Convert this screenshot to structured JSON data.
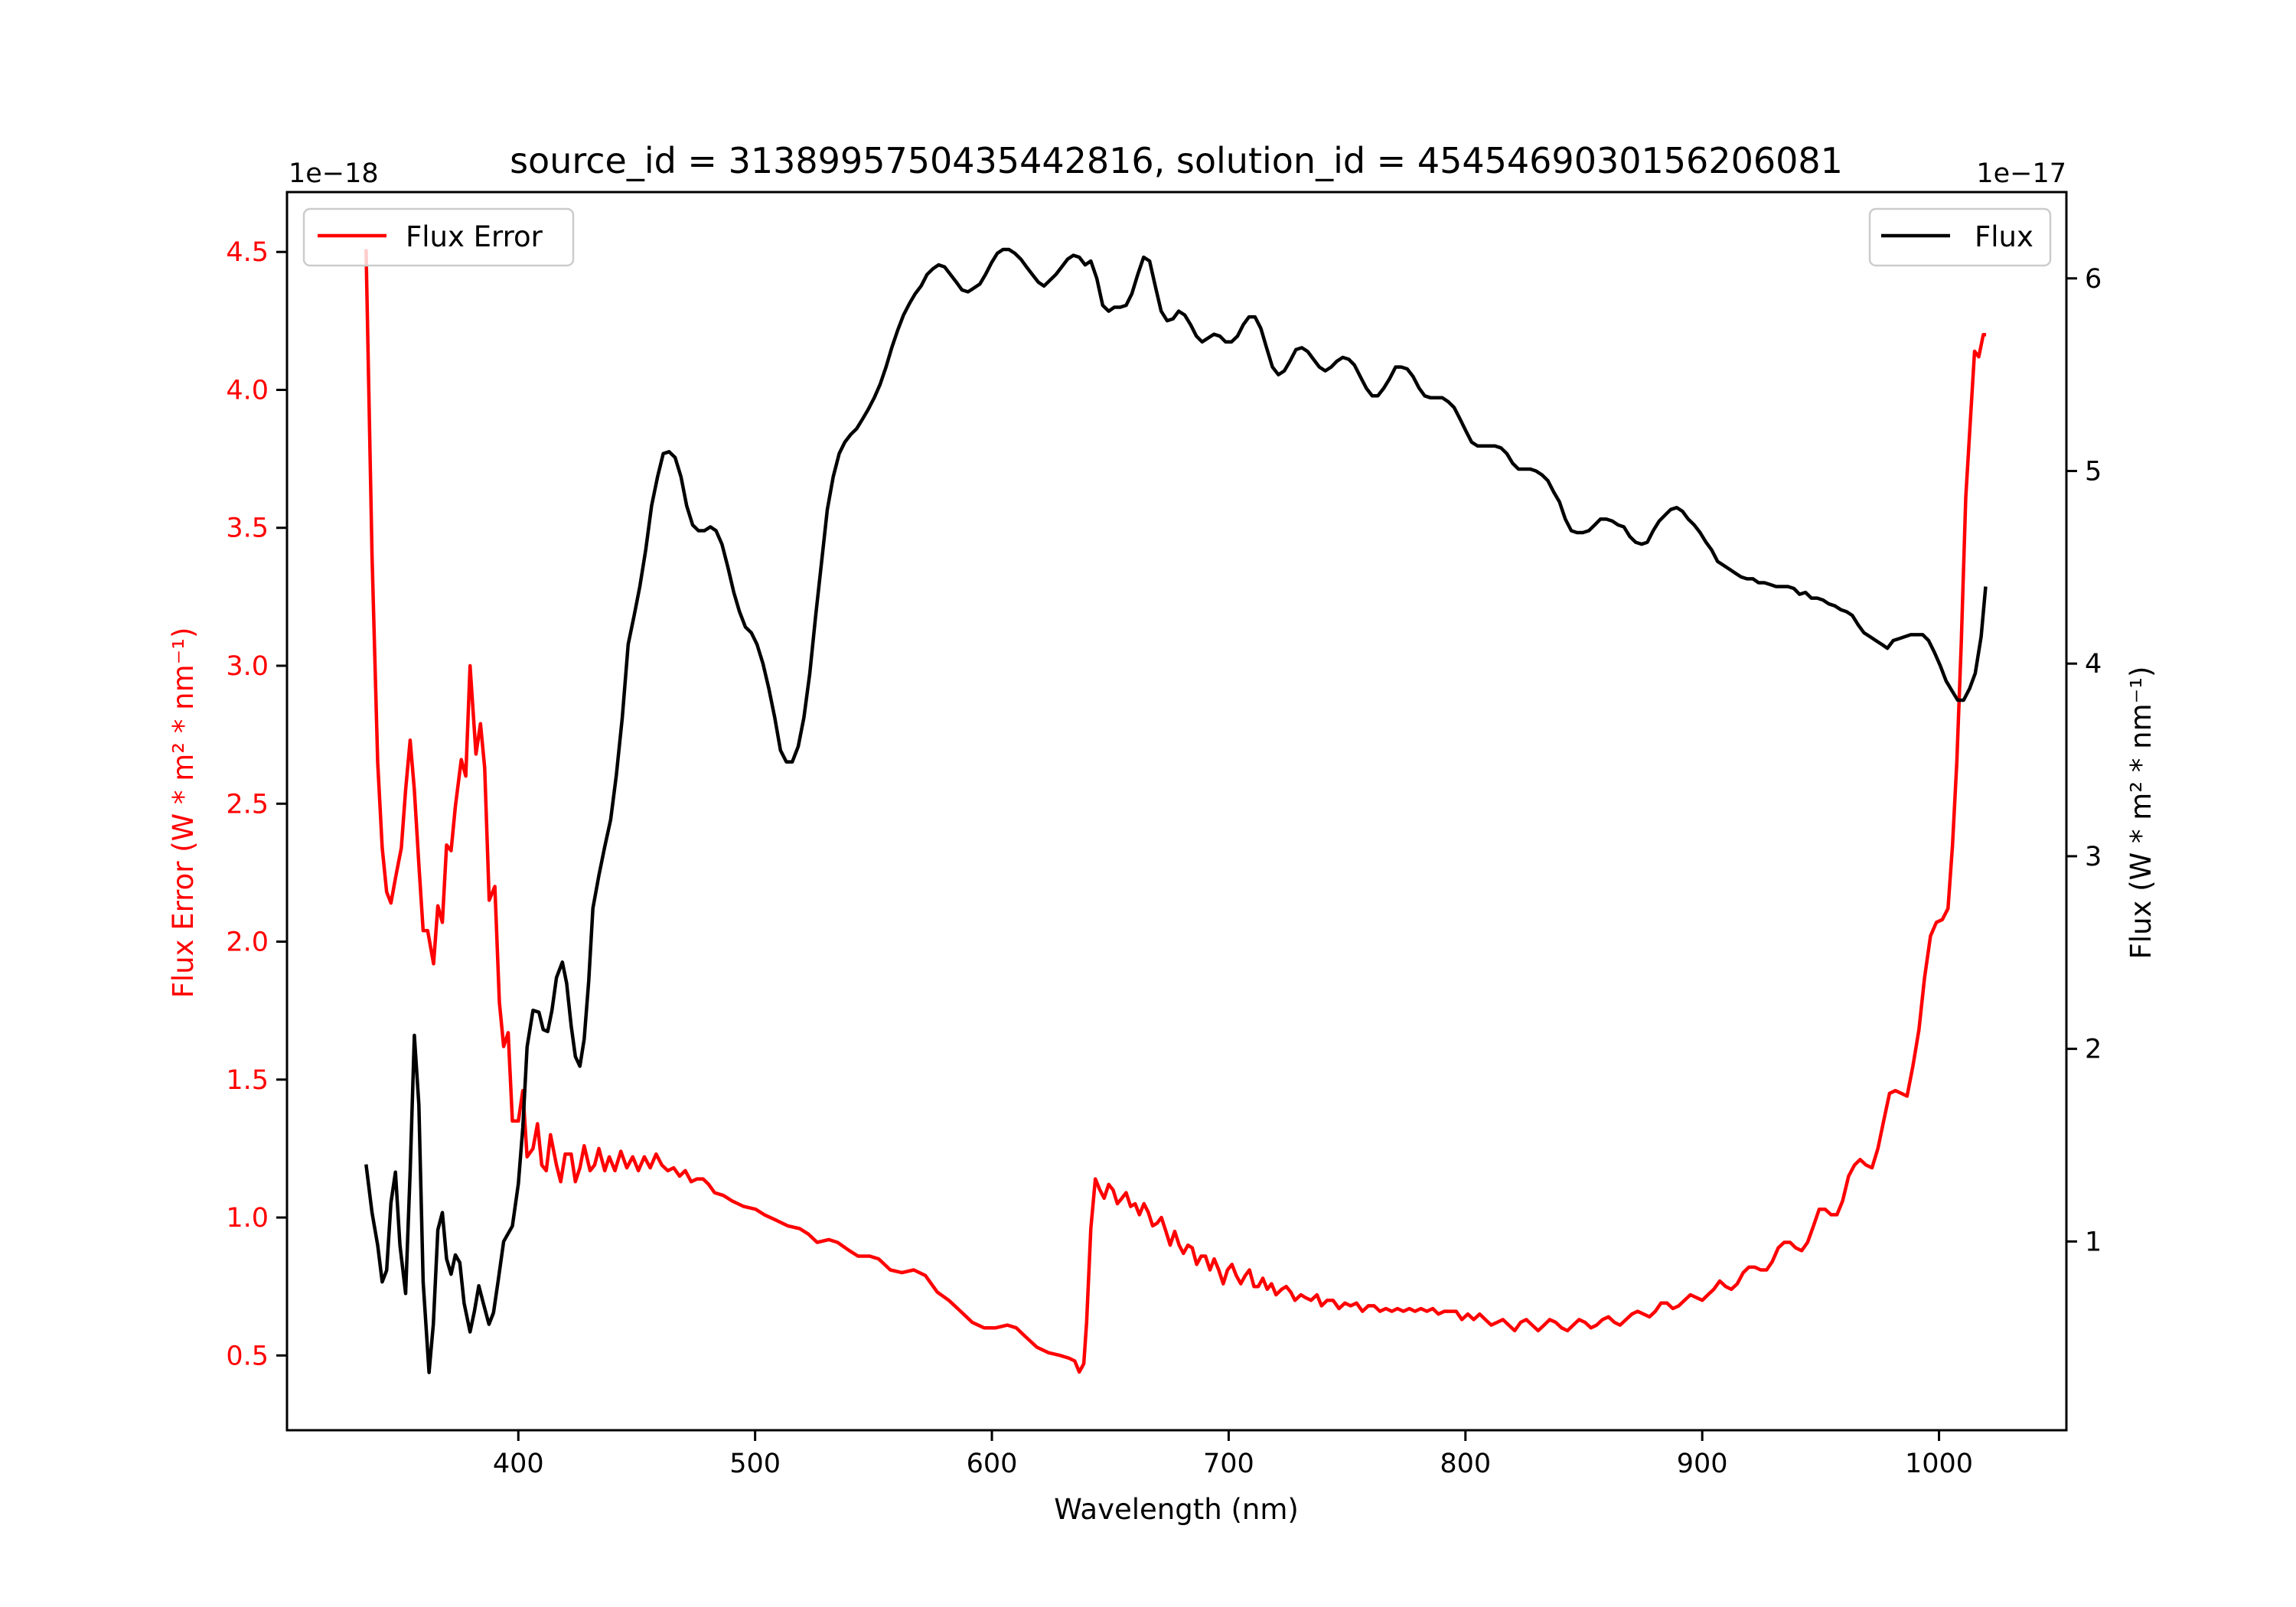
{
  "chart_data": {
    "type": "line",
    "title": "source_id = 3138995750435442816, solution_id = 4545469030156206081",
    "xlabel": "Wavelength (nm)",
    "ylabel_left": "Flux Error (W * m² * nm⁻¹)",
    "ylabel_right": "Flux (W * m² * nm⁻¹)",
    "offset_left": "1e−18",
    "offset_right": "1e−17",
    "xlim": [
      302.3,
      1053.8
    ],
    "ylim_left": [
      0.229,
      4.717
    ],
    "ylim_right": [
      0.02,
      6.448
    ],
    "xticks": [
      400,
      500,
      600,
      700,
      800,
      900,
      1000
    ],
    "yticks_left": [
      "0.5",
      "1.0",
      "1.5",
      "2.0",
      "2.5",
      "3.0",
      "3.5",
      "4.0",
      "4.5"
    ],
    "yticks_right": [
      "1",
      "2",
      "3",
      "4",
      "5",
      "6"
    ],
    "grid": false,
    "colors": {
      "flux_error": "#ff0000",
      "flux": "#000000"
    },
    "series": [
      {
        "name": "Flux Error",
        "axis": "left",
        "legend_position": "top-left",
        "x": [
          335.7,
          338.2,
          340.6,
          342.5,
          344.4,
          346.2,
          348.1,
          350.6,
          352.4,
          354.3,
          356.1,
          358.0,
          359.8,
          361.7,
          364.2,
          366.0,
          367.9,
          369.7,
          371.6,
          373.4,
          375.9,
          377.8,
          379.6,
          382.1,
          384.0,
          385.8,
          387.7,
          390.1,
          392.0,
          393.8,
          395.7,
          397.5,
          400.0,
          401.9,
          403.7,
          406.2,
          408.1,
          409.9,
          411.8,
          413.6,
          416.1,
          417.9,
          419.8,
          422.3,
          424.1,
          426.0,
          427.8,
          430.3,
          432.2,
          434.0,
          436.5,
          438.4,
          440.8,
          443.3,
          445.8,
          448.3,
          450.7,
          453.2,
          455.7,
          458.2,
          460.6,
          463.1,
          465.6,
          468.1,
          470.5,
          473.0,
          475.5,
          478.0,
          480.4,
          482.9,
          486.6,
          490.3,
          495.2,
          500.2,
          503.9,
          508.9,
          513.8,
          518.8,
          522.5,
          526.2,
          531.1,
          534.8,
          539.8,
          543.5,
          548.4,
          552.2,
          557.1,
          562.0,
          567.0,
          571.9,
          576.9,
          581.8,
          586.8,
          591.7,
          596.7,
          601.6,
          606.6,
          610.3,
          614.0,
          619.0,
          623.9,
          628.9,
          632.6,
          635.0,
          636.9,
          638.8,
          640.0,
          641.8,
          643.7,
          645.6,
          647.4,
          649.3,
          651.2,
          653.0,
          654.9,
          656.7,
          658.6,
          660.5,
          662.3,
          664.2,
          666.0,
          667.9,
          669.8,
          671.6,
          673.5,
          675.3,
          677.2,
          679.1,
          680.9,
          682.8,
          684.6,
          686.5,
          688.4,
          690.2,
          692.1,
          693.9,
          695.8,
          697.7,
          699.5,
          701.4,
          703.2,
          705.1,
          707.0,
          708.8,
          710.7,
          712.5,
          714.4,
          716.3,
          718.1,
          720.0,
          722.4,
          724.3,
          726.2,
          728.0,
          730.5,
          732.4,
          734.8,
          737.3,
          739.2,
          741.6,
          744.1,
          746.6,
          749.1,
          751.5,
          754.0,
          756.5,
          759.0,
          761.4,
          763.9,
          766.4,
          768.9,
          771.3,
          773.8,
          776.3,
          778.7,
          781.2,
          783.7,
          786.2,
          788.6,
          791.1,
          793.6,
          796.1,
          798.5,
          801.0,
          803.5,
          806.0,
          808.4,
          810.9,
          813.4,
          815.8,
          818.3,
          820.8,
          823.3,
          825.7,
          828.2,
          830.7,
          833.2,
          835.6,
          838.1,
          840.6,
          843.1,
          845.5,
          848.0,
          850.5,
          853.0,
          855.4,
          857.9,
          860.4,
          862.9,
          865.3,
          867.8,
          870.3,
          872.7,
          875.2,
          877.7,
          880.2,
          882.6,
          885.1,
          887.6,
          890.1,
          892.5,
          895.0,
          897.5,
          900.0,
          902.4,
          904.9,
          907.4,
          909.9,
          912.3,
          914.8,
          917.3,
          919.7,
          922.2,
          924.7,
          927.2,
          929.6,
          932.1,
          934.6,
          937.1,
          939.5,
          942.0,
          944.5,
          947.0,
          949.4,
          951.9,
          954.4,
          956.9,
          959.3,
          961.8,
          964.3,
          966.7,
          969.2,
          971.7,
          974.2,
          976.6,
          979.1,
          981.6,
          984.1,
          986.5,
          989.0,
          991.5,
          993.9,
          996.4,
          998.9,
          1001.4,
          1003.8,
          1005.7,
          1007.5,
          1009.4,
          1011.3,
          1013.1,
          1015.0,
          1016.8,
          1018.7,
          1019.9
        ],
        "y": [
          4.51,
          3.4,
          2.65,
          2.34,
          2.18,
          2.14,
          2.23,
          2.34,
          2.55,
          2.73,
          2.55,
          2.28,
          2.04,
          2.04,
          1.92,
          2.13,
          2.07,
          2.35,
          2.33,
          2.49,
          2.66,
          2.6,
          3.0,
          2.68,
          2.79,
          2.63,
          2.15,
          2.2,
          1.78,
          1.62,
          1.67,
          1.35,
          1.35,
          1.46,
          1.22,
          1.25,
          1.34,
          1.19,
          1.17,
          1.3,
          1.19,
          1.13,
          1.23,
          1.23,
          1.13,
          1.18,
          1.26,
          1.17,
          1.19,
          1.25,
          1.17,
          1.22,
          1.17,
          1.24,
          1.18,
          1.22,
          1.17,
          1.22,
          1.18,
          1.23,
          1.19,
          1.17,
          1.18,
          1.15,
          1.17,
          1.13,
          1.14,
          1.14,
          1.12,
          1.09,
          1.08,
          1.06,
          1.04,
          1.03,
          1.01,
          0.99,
          0.97,
          0.96,
          0.94,
          0.91,
          0.92,
          0.91,
          0.88,
          0.86,
          0.86,
          0.85,
          0.81,
          0.8,
          0.81,
          0.79,
          0.73,
          0.7,
          0.66,
          0.62,
          0.6,
          0.6,
          0.61,
          0.6,
          0.57,
          0.53,
          0.51,
          0.5,
          0.49,
          0.48,
          0.44,
          0.47,
          0.62,
          0.96,
          1.14,
          1.1,
          1.07,
          1.12,
          1.1,
          1.05,
          1.07,
          1.09,
          1.04,
          1.05,
          1.01,
          1.05,
          1.02,
          0.97,
          0.98,
          1.0,
          0.95,
          0.9,
          0.95,
          0.9,
          0.87,
          0.9,
          0.89,
          0.83,
          0.86,
          0.86,
          0.81,
          0.85,
          0.81,
          0.76,
          0.81,
          0.83,
          0.79,
          0.76,
          0.79,
          0.81,
          0.75,
          0.75,
          0.78,
          0.74,
          0.76,
          0.72,
          0.74,
          0.75,
          0.73,
          0.7,
          0.72,
          0.71,
          0.7,
          0.72,
          0.68,
          0.7,
          0.7,
          0.67,
          0.69,
          0.68,
          0.69,
          0.66,
          0.68,
          0.68,
          0.66,
          0.67,
          0.66,
          0.67,
          0.66,
          0.67,
          0.66,
          0.67,
          0.66,
          0.67,
          0.65,
          0.66,
          0.66,
          0.66,
          0.63,
          0.65,
          0.63,
          0.65,
          0.63,
          0.61,
          0.62,
          0.63,
          0.61,
          0.59,
          0.62,
          0.63,
          0.61,
          0.59,
          0.61,
          0.63,
          0.62,
          0.6,
          0.59,
          0.61,
          0.63,
          0.62,
          0.6,
          0.61,
          0.63,
          0.64,
          0.62,
          0.61,
          0.63,
          0.65,
          0.66,
          0.65,
          0.64,
          0.66,
          0.69,
          0.69,
          0.67,
          0.68,
          0.7,
          0.72,
          0.71,
          0.7,
          0.72,
          0.74,
          0.77,
          0.75,
          0.74,
          0.76,
          0.8,
          0.82,
          0.82,
          0.81,
          0.81,
          0.84,
          0.89,
          0.91,
          0.91,
          0.89,
          0.88,
          0.91,
          0.97,
          1.03,
          1.03,
          1.01,
          1.01,
          1.06,
          1.15,
          1.19,
          1.21,
          1.19,
          1.18,
          1.25,
          1.35,
          1.45,
          1.46,
          1.45,
          1.44,
          1.55,
          1.68,
          1.87,
          2.02,
          2.07,
          2.08,
          2.12,
          2.35,
          2.65,
          3.08,
          3.61,
          3.87,
          4.14,
          4.12,
          4.2,
          4.2
        ]
      },
      {
        "name": "Flux",
        "axis": "right",
        "legend_position": "top-right",
        "x": [
          335.7,
          338.2,
          340.6,
          342.5,
          344.4,
          346.2,
          348.1,
          350.0,
          352.4,
          354.3,
          356.1,
          358.0,
          359.8,
          362.3,
          364.1,
          366.0,
          367.9,
          369.7,
          371.6,
          373.4,
          375.3,
          377.1,
          379.6,
          381.5,
          383.3,
          385.2,
          387.6,
          389.5,
          391.4,
          393.8,
          397.5,
          400.0,
          401.9,
          403.7,
          406.2,
          408.7,
          410.5,
          412.4,
          414.2,
          416.1,
          418.6,
          420.4,
          422.3,
          424.1,
          426.0,
          427.8,
          429.7,
          431.5,
          434.0,
          436.5,
          439.0,
          441.4,
          443.9,
          446.4,
          448.9,
          451.3,
          453.8,
          456.3,
          458.8,
          461.2,
          463.7,
          466.2,
          468.7,
          471.1,
          473.6,
          476.1,
          478.6,
          481.1,
          483.5,
          486.0,
          488.5,
          491.0,
          493.4,
          495.9,
          498.4,
          500.8,
          503.3,
          505.8,
          508.3,
          510.7,
          513.2,
          515.7,
          518.2,
          520.6,
          523.1,
          525.6,
          528.0,
          530.5,
          533.0,
          535.5,
          537.9,
          540.4,
          542.9,
          545.4,
          547.8,
          550.3,
          552.8,
          555.3,
          557.7,
          560.2,
          562.7,
          565.2,
          567.6,
          570.1,
          572.6,
          575.1,
          577.5,
          580.0,
          582.5,
          585.0,
          587.4,
          589.9,
          592.4,
          594.9,
          597.3,
          599.8,
          602.3,
          604.7,
          607.2,
          609.7,
          612.2,
          614.6,
          617.1,
          619.6,
          622.0,
          624.5,
          627.0,
          629.5,
          632.0,
          634.4,
          636.9,
          639.4,
          641.8,
          644.3,
          646.8,
          649.3,
          651.7,
          654.2,
          656.7,
          659.1,
          661.6,
          664.1,
          666.6,
          669.0,
          671.5,
          674.0,
          676.5,
          678.9,
          681.4,
          683.9,
          686.4,
          688.8,
          691.3,
          693.8,
          696.3,
          698.7,
          701.2,
          703.7,
          706.2,
          708.6,
          711.1,
          713.6,
          716.0,
          718.5,
          721.0,
          723.5,
          725.9,
          728.4,
          730.9,
          733.4,
          735.8,
          738.3,
          740.8,
          743.3,
          745.7,
          748.2,
          750.7,
          753.1,
          755.6,
          758.1,
          760.6,
          763.0,
          765.5,
          768.0,
          770.5,
          772.9,
          775.4,
          777.9,
          780.4,
          782.8,
          785.3,
          787.8,
          790.2,
          792.7,
          795.2,
          797.7,
          800.1,
          802.6,
          805.1,
          807.6,
          810.0,
          812.5,
          815.0,
          817.5,
          819.9,
          822.4,
          824.9,
          827.4,
          829.8,
          832.3,
          834.8,
          837.3,
          839.7,
          842.2,
          844.7,
          847.1,
          849.6,
          852.1,
          854.6,
          857.0,
          859.5,
          862.0,
          864.5,
          866.9,
          869.4,
          871.9,
          874.4,
          876.8,
          879.3,
          881.8,
          884.2,
          886.7,
          889.2,
          891.7,
          894.1,
          896.6,
          899.1,
          901.6,
          904.0,
          906.5,
          909.0,
          911.5,
          913.9,
          916.4,
          918.9,
          921.4,
          923.8,
          926.3,
          928.8,
          931.2,
          933.7,
          936.2,
          938.7,
          941.1,
          943.6,
          946.1,
          948.6,
          951.0,
          953.5,
          956.0,
          958.5,
          960.9,
          963.4,
          965.9,
          968.3,
          970.8,
          973.3,
          975.8,
          978.2,
          980.7,
          983.2,
          985.7,
          988.1,
          990.6,
          993.1,
          995.6,
          998.0,
          1000.5,
          1003.0,
          1005.4,
          1007.9,
          1010.4,
          1012.9,
          1015.3,
          1017.8,
          1019.7
        ],
        "y": [
          1.4,
          1.15,
          0.98,
          0.79,
          0.85,
          1.2,
          1.36,
          0.98,
          0.73,
          1.36,
          2.07,
          1.71,
          0.79,
          0.32,
          0.57,
          1.06,
          1.15,
          0.91,
          0.83,
          0.93,
          0.89,
          0.68,
          0.53,
          0.64,
          0.77,
          0.68,
          0.57,
          0.63,
          0.79,
          1.0,
          1.08,
          1.3,
          1.59,
          2.01,
          2.2,
          2.19,
          2.1,
          2.09,
          2.2,
          2.37,
          2.45,
          2.34,
          2.12,
          1.96,
          1.91,
          2.05,
          2.35,
          2.73,
          2.9,
          3.05,
          3.19,
          3.42,
          3.72,
          4.1,
          4.25,
          4.4,
          4.59,
          4.82,
          4.97,
          5.09,
          5.1,
          5.07,
          4.97,
          4.82,
          4.72,
          4.69,
          4.69,
          4.71,
          4.69,
          4.62,
          4.5,
          4.37,
          4.27,
          4.19,
          4.16,
          4.1,
          4.0,
          3.87,
          3.72,
          3.55,
          3.49,
          3.49,
          3.57,
          3.72,
          3.95,
          4.25,
          4.52,
          4.8,
          4.97,
          5.09,
          5.15,
          5.19,
          5.22,
          5.27,
          5.32,
          5.38,
          5.45,
          5.54,
          5.64,
          5.73,
          5.81,
          5.87,
          5.92,
          5.96,
          6.02,
          6.05,
          6.07,
          6.06,
          6.02,
          5.98,
          5.94,
          5.93,
          5.95,
          5.97,
          6.02,
          6.08,
          6.13,
          6.15,
          6.15,
          6.13,
          6.1,
          6.06,
          6.02,
          5.98,
          5.96,
          5.99,
          6.02,
          6.06,
          6.1,
          6.12,
          6.11,
          6.07,
          6.09,
          6.0,
          5.86,
          5.83,
          5.85,
          5.85,
          5.86,
          5.92,
          6.02,
          6.11,
          6.09,
          5.96,
          5.83,
          5.78,
          5.79,
          5.83,
          5.81,
          5.76,
          5.7,
          5.67,
          5.69,
          5.71,
          5.7,
          5.67,
          5.67,
          5.7,
          5.76,
          5.8,
          5.8,
          5.74,
          5.64,
          5.54,
          5.5,
          5.52,
          5.57,
          5.63,
          5.64,
          5.62,
          5.58,
          5.54,
          5.52,
          5.54,
          5.57,
          5.59,
          5.58,
          5.55,
          5.49,
          5.43,
          5.39,
          5.39,
          5.43,
          5.48,
          5.54,
          5.54,
          5.53,
          5.49,
          5.43,
          5.39,
          5.38,
          5.38,
          5.38,
          5.36,
          5.33,
          5.27,
          5.21,
          5.15,
          5.13,
          5.13,
          5.13,
          5.13,
          5.12,
          5.09,
          5.04,
          5.01,
          5.01,
          5.01,
          5.0,
          4.98,
          4.95,
          4.89,
          4.84,
          4.75,
          4.69,
          4.68,
          4.68,
          4.69,
          4.72,
          4.75,
          4.75,
          4.74,
          4.72,
          4.71,
          4.66,
          4.63,
          4.62,
          4.63,
          4.69,
          4.74,
          4.77,
          4.8,
          4.81,
          4.79,
          4.75,
          4.72,
          4.68,
          4.63,
          4.59,
          4.53,
          4.51,
          4.49,
          4.47,
          4.45,
          4.44,
          4.44,
          4.42,
          4.42,
          4.41,
          4.4,
          4.4,
          4.4,
          4.39,
          4.36,
          4.37,
          4.34,
          4.34,
          4.33,
          4.31,
          4.3,
          4.28,
          4.27,
          4.25,
          4.2,
          4.16,
          4.14,
          4.12,
          4.1,
          4.08,
          4.12,
          4.13,
          4.14,
          4.15,
          4.15,
          4.15,
          4.12,
          4.06,
          3.99,
          3.91,
          3.86,
          3.81,
          3.81,
          3.87,
          3.95,
          4.14,
          4.4
        ]
      }
    ]
  }
}
